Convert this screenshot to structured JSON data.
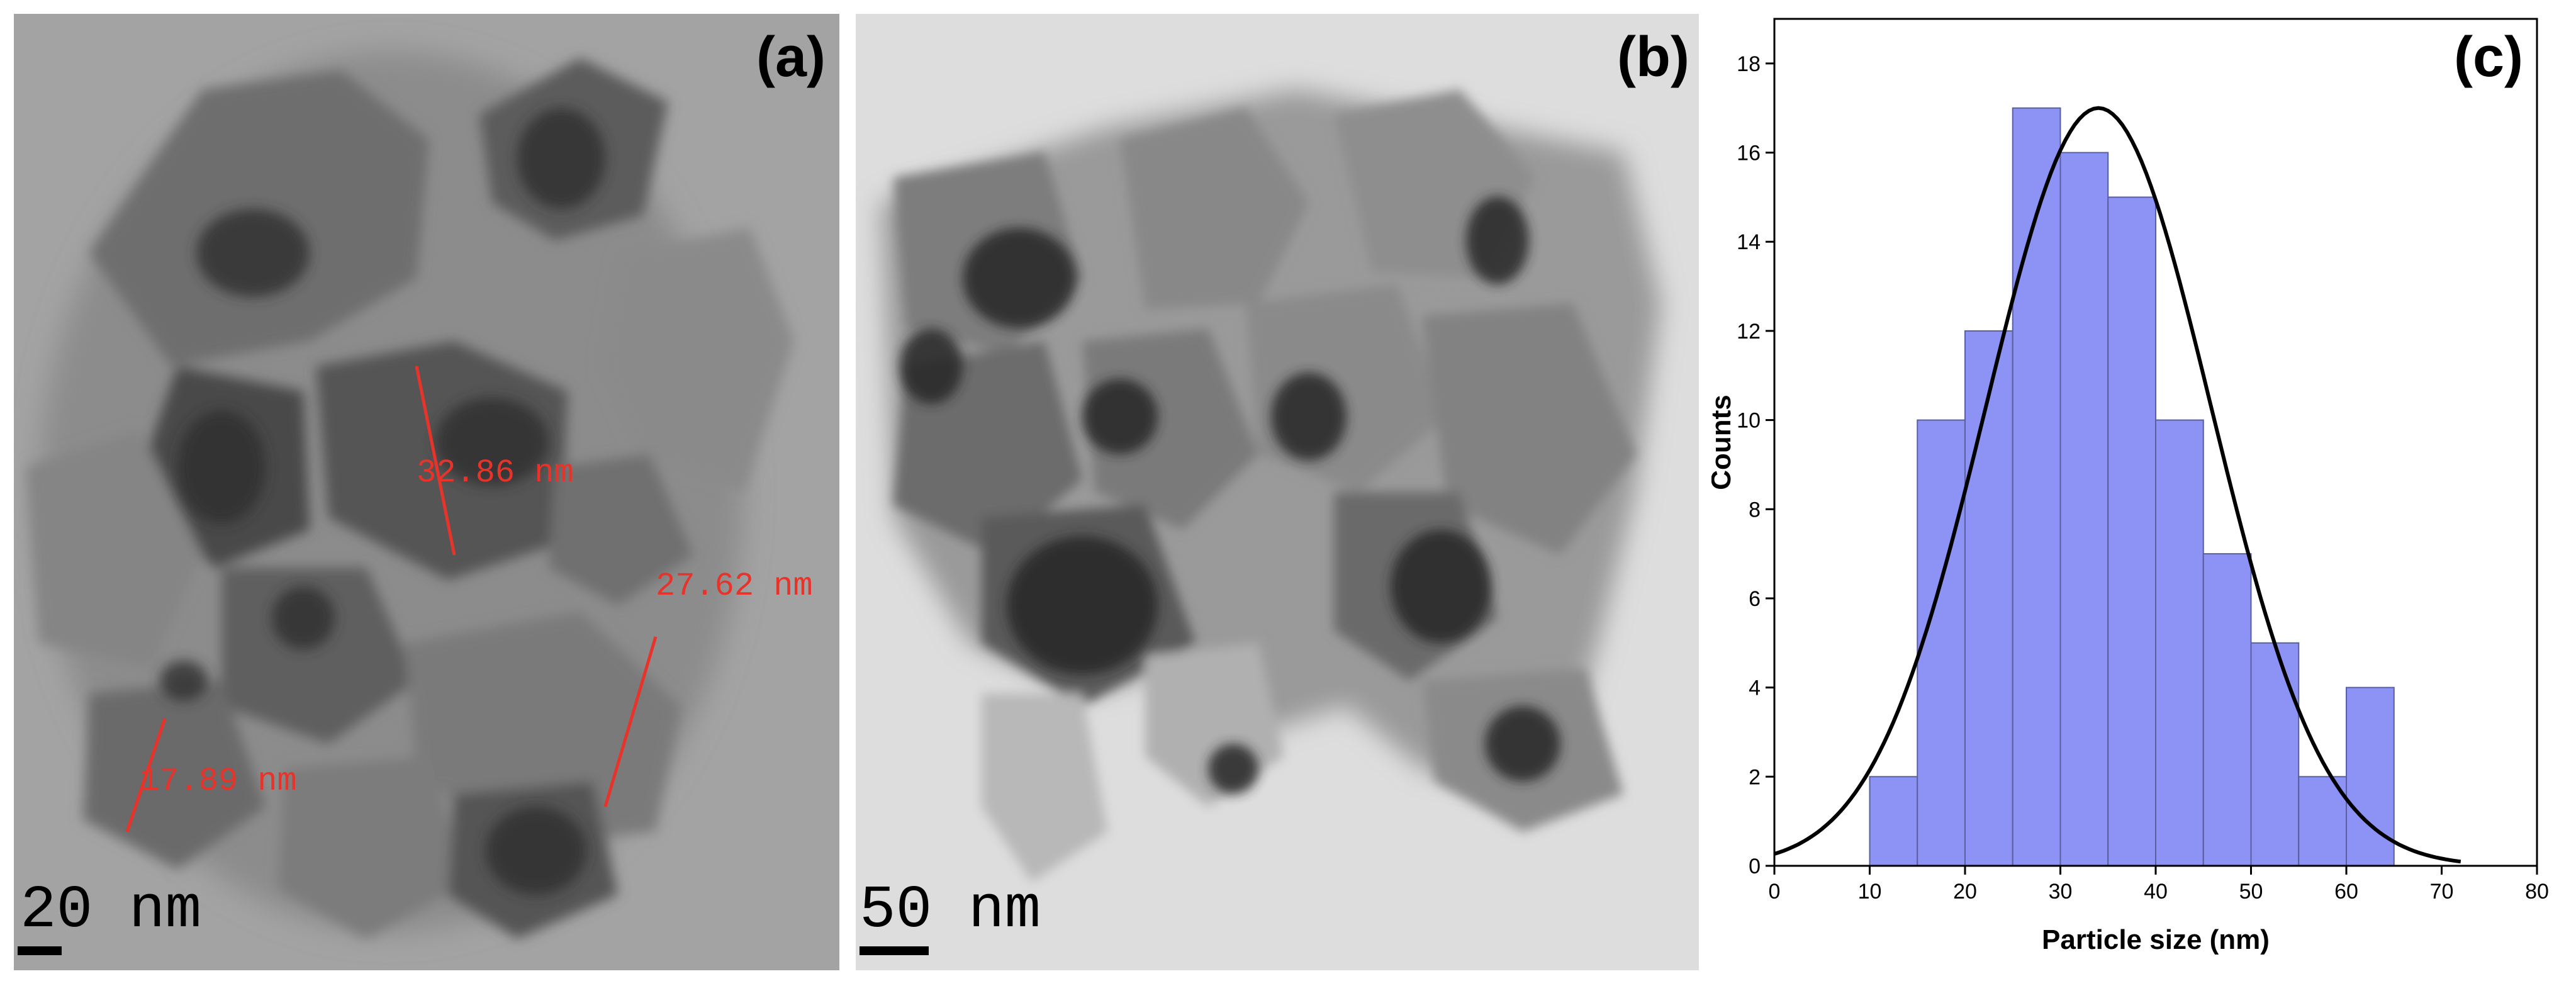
{
  "panels": {
    "a": {
      "label": "(a)",
      "scale_text": "20 nm",
      "measurements": [
        "32.86 nm",
        "27.62 nm",
        "17.89 nm"
      ]
    },
    "b": {
      "label": "(b)",
      "scale_text": "50 nm"
    },
    "c": {
      "label": "(c)"
    }
  },
  "colors": {
    "bar_fill": "#8c93f5",
    "bar_edge": "#5a5f9e",
    "fit_line": "#000000",
    "measure": "#e8332a"
  },
  "chart_data": {
    "type": "bar",
    "subtype": "histogram",
    "title": "",
    "xlabel": "Particle size (nm)",
    "ylabel": "Counts",
    "xlim": [
      0,
      80
    ],
    "ylim": [
      0,
      19
    ],
    "xticks": [
      0,
      10,
      20,
      30,
      40,
      50,
      60,
      70,
      80
    ],
    "yticks": [
      0,
      2,
      4,
      6,
      8,
      10,
      12,
      14,
      16,
      18
    ],
    "bin_width": 5,
    "bins": [
      {
        "start": 10,
        "end": 15,
        "count": 2
      },
      {
        "start": 15,
        "end": 20,
        "count": 10
      },
      {
        "start": 20,
        "end": 25,
        "count": 12
      },
      {
        "start": 25,
        "end": 30,
        "count": 17
      },
      {
        "start": 30,
        "end": 35,
        "count": 16
      },
      {
        "start": 35,
        "end": 40,
        "count": 15
      },
      {
        "start": 40,
        "end": 45,
        "count": 10
      },
      {
        "start": 45,
        "end": 50,
        "count": 7
      },
      {
        "start": 50,
        "end": 55,
        "count": 5
      },
      {
        "start": 55,
        "end": 60,
        "count": 2
      },
      {
        "start": 60,
        "end": 65,
        "count": 4
      }
    ],
    "fit": {
      "type": "gaussian",
      "mean": 34,
      "peak": 17,
      "sigma": 11.8,
      "x_range": [
        0,
        72
      ]
    },
    "grid": false,
    "legend": "none"
  }
}
